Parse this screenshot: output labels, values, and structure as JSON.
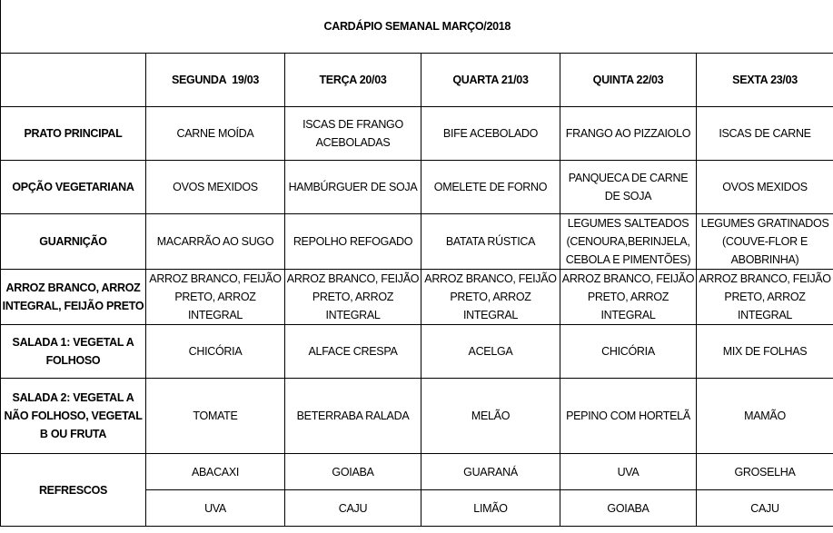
{
  "title": "CARDÁPIO SEMANAL MARÇO/2018",
  "days": [
    "SEGUNDA  19/03",
    "TERÇA 20/03",
    "QUARTA 21/03",
    "QUINTA 22/03",
    "SEXTA 23/03"
  ],
  "rows": [
    {
      "label": "PRATO PRINCIPAL",
      "cells": [
        "CARNE MOÍDA",
        "ISCAS DE FRANGO ACEBOLADAS",
        "BIFE ACEBOLADO",
        "FRANGO AO PIZZAIOLO",
        "ISCAS DE CARNE"
      ]
    },
    {
      "label": "OPÇÃO VEGETARIANA",
      "cells": [
        "OVOS MEXIDOS",
        "HAMBÚRGUER DE SOJA",
        "OMELETE DE FORNO",
        "PANQUECA DE CARNE DE SOJA",
        "OVOS MEXIDOS"
      ]
    },
    {
      "label": "GUARNIÇÃO",
      "cells": [
        "MACARRÃO AO SUGO",
        "REPOLHO REFOGADO",
        "BATATA RÚSTICA",
        "LEGUMES SALTEADOS (CENOURA,BERINJELA, CEBOLA E PIMENTÕES)",
        "LEGUMES GRATINADOS (COUVE-FLOR E ABOBRINHA)"
      ]
    },
    {
      "label": "ARROZ BRANCO, ARROZ INTEGRAL, FEIJÃO PRETO",
      "cells": [
        "ARROZ BRANCO, FEIJÃO PRETO, ARROZ INTEGRAL",
        "ARROZ BRANCO, FEIJÃO PRETO, ARROZ INTEGRAL",
        "ARROZ BRANCO, FEIJÃO PRETO, ARROZ INTEGRAL",
        "ARROZ BRANCO, FEIJÃO PRETO, ARROZ INTEGRAL",
        "ARROZ BRANCO, FEIJÃO PRETO, ARROZ INTEGRAL"
      ]
    },
    {
      "label": "SALADA 1: VEGETAL A FOLHOSO",
      "cells": [
        "CHICÓRIA",
        "ALFACE CRESPA",
        "ACELGA",
        "CHICÓRIA",
        "MIX DE FOLHAS"
      ]
    },
    {
      "label": "SALADA 2: VEGETAL A NÃO FOLHOSO, VEGETAL B OU FRUTA",
      "cells": [
        "TOMATE",
        "BETERRABA RALADA",
        "MELÃO",
        "PEPINO COM HORTELÃ",
        "MAMÃO"
      ]
    }
  ],
  "refrescos": {
    "label": "REFRESCOS",
    "row1": [
      "ABACAXI",
      "GOIABA",
      "GUARANÁ",
      "UVA",
      "GROSELHA"
    ],
    "row2": [
      "UVA",
      "CAJU",
      "LIMÃO",
      "GOIABA",
      "CAJU"
    ]
  }
}
